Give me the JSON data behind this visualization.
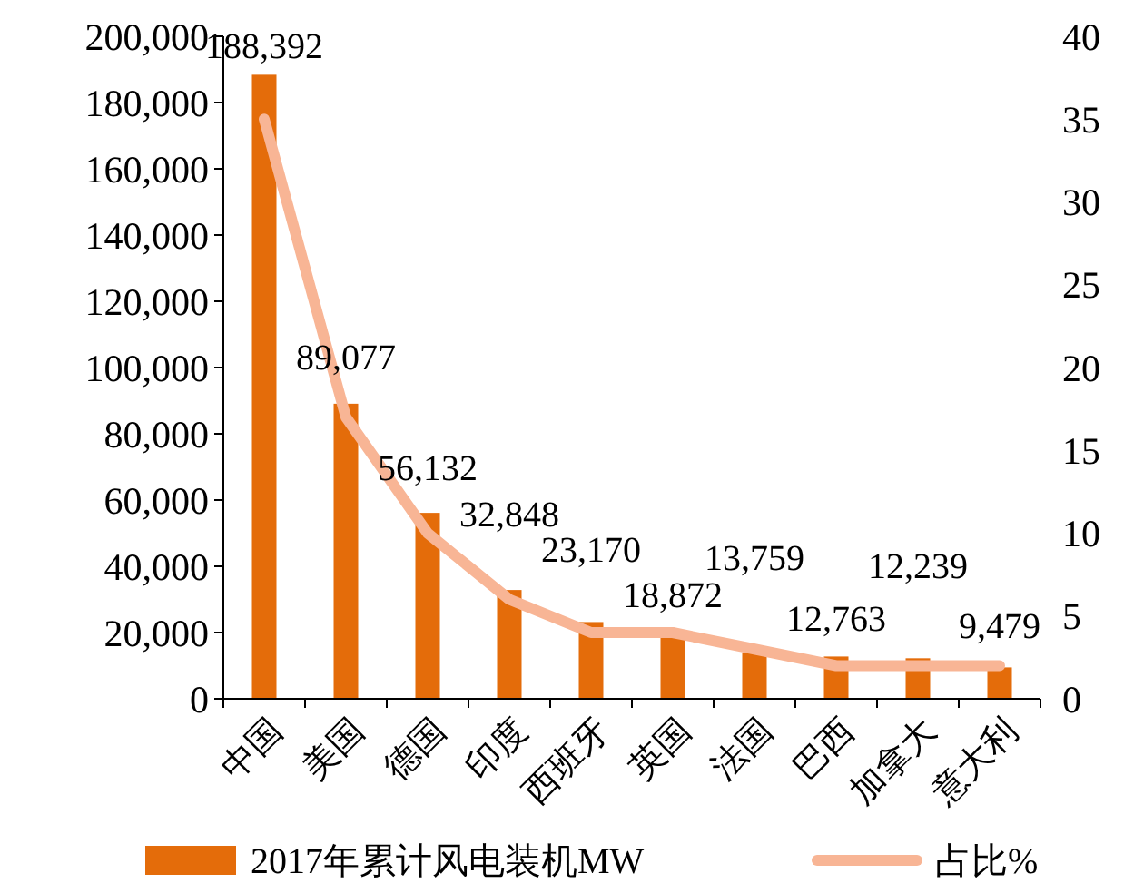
{
  "chart_data": {
    "type": "bar",
    "categories": [
      "中国",
      "美国",
      "德国",
      "印度",
      "西班牙",
      "英国",
      "法国",
      "巴西",
      "加拿大",
      "意大利"
    ],
    "series": [
      {
        "name": "2017年累计风电装机MW",
        "color": "#e46c0a",
        "values": [
          188392,
          89077,
          56132,
          32848,
          23170,
          18872,
          13759,
          12763,
          12239,
          9479
        ],
        "value_labels": [
          "188,392",
          "89,077",
          "56,132",
          "32,848",
          "23,170",
          "18,872",
          "13,759",
          "12,763",
          "12,239",
          "9,479"
        ]
      },
      {
        "name": "占比%",
        "type": "line",
        "axis": "y2",
        "color": "#f8b595",
        "values": [
          35,
          17,
          10,
          6,
          4,
          4,
          3,
          2,
          2,
          2
        ]
      }
    ],
    "ylim": [
      0,
      200000
    ],
    "yticks": [
      0,
      {
        "value": 20000,
        "label": "20,000"
      },
      {
        "value": 40000,
        "label": "40,000"
      },
      {
        "value": 60000,
        "label": "60,000"
      },
      {
        "value": 80000,
        "label": "80,000"
      },
      {
        "value": 100000,
        "label": "100,000"
      },
      {
        "value": 120000,
        "label": "120,000"
      },
      {
        "value": 140000,
        "label": "140,000"
      },
      {
        "value": 160000,
        "label": "160,000"
      },
      {
        "value": 180000,
        "label": "180,000"
      },
      {
        "value": 200000,
        "label": "200,000"
      }
    ],
    "y2lim": [
      0,
      40
    ],
    "y2ticks": [
      0,
      5,
      10,
      15,
      20,
      25,
      30,
      35,
      40
    ],
    "legend": "bottom",
    "grid": false
  }
}
